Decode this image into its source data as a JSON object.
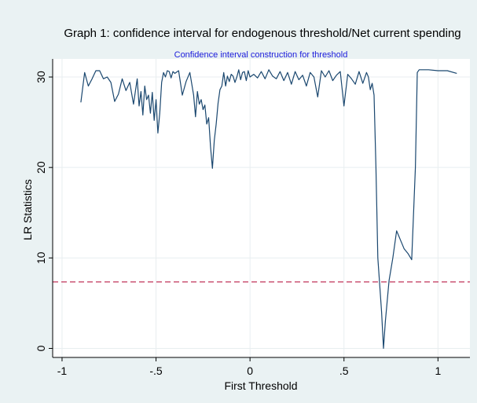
{
  "chart_data": {
    "type": "line",
    "title": "Graph 1: confidence interval for endogenous threshold/Net current spending",
    "subtitle": "Confidence interval construction for threshold",
    "xlabel": "First Threshold",
    "ylabel": "LR Statistics",
    "xlim": [
      -1.05,
      1.17
    ],
    "ylim": [
      -1.0,
      32.0
    ],
    "x_ticks": [
      -1,
      -0.5,
      0,
      0.5,
      1
    ],
    "x_tick_labels": [
      "-1",
      "-.5",
      "0",
      ".5",
      "1"
    ],
    "y_ticks": [
      0,
      10,
      20,
      30
    ],
    "y_tick_labels": [
      "0",
      "10",
      "20",
      "30"
    ],
    "grid": true,
    "legend": "none",
    "series": [
      {
        "color": "#1a476f",
        "x": [
          -0.9,
          -0.88,
          -0.86,
          -0.84,
          -0.82,
          -0.8,
          -0.78,
          -0.76,
          -0.74,
          -0.72,
          -0.7,
          -0.68,
          -0.66,
          -0.64,
          -0.62,
          -0.6,
          -0.59,
          -0.58,
          -0.57,
          -0.56,
          -0.55,
          -0.54,
          -0.53,
          -0.52,
          -0.51,
          -0.5,
          -0.49,
          -0.48,
          -0.47,
          -0.46,
          -0.45,
          -0.44,
          -0.43,
          -0.42,
          -0.41,
          -0.4,
          -0.38,
          -0.36,
          -0.34,
          -0.32,
          -0.3,
          -0.29,
          -0.28,
          -0.27,
          -0.26,
          -0.25,
          -0.24,
          -0.23,
          -0.22,
          -0.21,
          -0.2,
          -0.19,
          -0.18,
          -0.17,
          -0.16,
          -0.15,
          -0.14,
          -0.13,
          -0.12,
          -0.11,
          -0.1,
          -0.09,
          -0.08,
          -0.07,
          -0.06,
          -0.05,
          -0.04,
          -0.03,
          -0.02,
          -0.01,
          0.0,
          0.02,
          0.04,
          0.06,
          0.08,
          0.1,
          0.12,
          0.14,
          0.16,
          0.18,
          0.2,
          0.22,
          0.24,
          0.26,
          0.28,
          0.3,
          0.32,
          0.34,
          0.36,
          0.38,
          0.4,
          0.42,
          0.44,
          0.46,
          0.48,
          0.5,
          0.52,
          0.54,
          0.56,
          0.58,
          0.6,
          0.62,
          0.63,
          0.64,
          0.65,
          0.66,
          0.67,
          0.68,
          0.7,
          0.71,
          0.72,
          0.74,
          0.76,
          0.78,
          0.8,
          0.82,
          0.84,
          0.86,
          0.88,
          0.89,
          0.9,
          0.95,
          1.0,
          1.05,
          1.1
        ],
        "values": [
          27.2,
          30.5,
          29.0,
          29.8,
          30.7,
          30.7,
          29.8,
          30.0,
          29.4,
          27.3,
          28.1,
          29.8,
          28.5,
          29.4,
          27.0,
          29.8,
          26.8,
          28.4,
          25.8,
          29.0,
          27.5,
          28.0,
          26.0,
          28.3,
          25.2,
          27.5,
          23.8,
          26.0,
          29.4,
          30.5,
          30.0,
          30.7,
          30.6,
          29.9,
          30.6,
          30.4,
          30.7,
          28.0,
          29.5,
          30.5,
          28.0,
          25.6,
          28.4,
          27.0,
          27.5,
          26.4,
          26.9,
          24.8,
          25.5,
          22.3,
          19.9,
          23.0,
          24.8,
          27.1,
          28.6,
          29.0,
          30.5,
          29.0,
          30.1,
          29.5,
          30.3,
          30.1,
          29.4,
          30.0,
          30.8,
          29.7,
          30.5,
          30.6,
          29.6,
          30.7,
          30.0,
          30.3,
          29.9,
          30.6,
          29.8,
          30.8,
          30.1,
          29.8,
          30.6,
          29.6,
          30.5,
          29.2,
          30.6,
          29.7,
          30.2,
          29.0,
          30.5,
          30.0,
          27.8,
          30.7,
          30.0,
          30.7,
          29.6,
          30.2,
          30.6,
          26.8,
          30.3,
          29.8,
          29.2,
          30.6,
          29.3,
          30.5,
          30.0,
          28.6,
          29.3,
          28.0,
          20.0,
          10.0,
          4.0,
          0.0,
          3.0,
          7.5,
          10.0,
          13.0,
          12.0,
          11.0,
          10.5,
          9.8,
          20.0,
          30.5,
          30.8,
          30.8,
          30.7,
          30.7,
          30.4
        ]
      }
    ],
    "reference_lines": [
      {
        "axis": "y",
        "value": 7.35,
        "color": "#c0345a",
        "style": "dashed"
      }
    ],
    "colors": {
      "background": "#eaf2f3",
      "plot_background": "#ffffff",
      "grid": "#e8eef0",
      "line": "#1a476f",
      "reference": "#c0345a"
    }
  }
}
